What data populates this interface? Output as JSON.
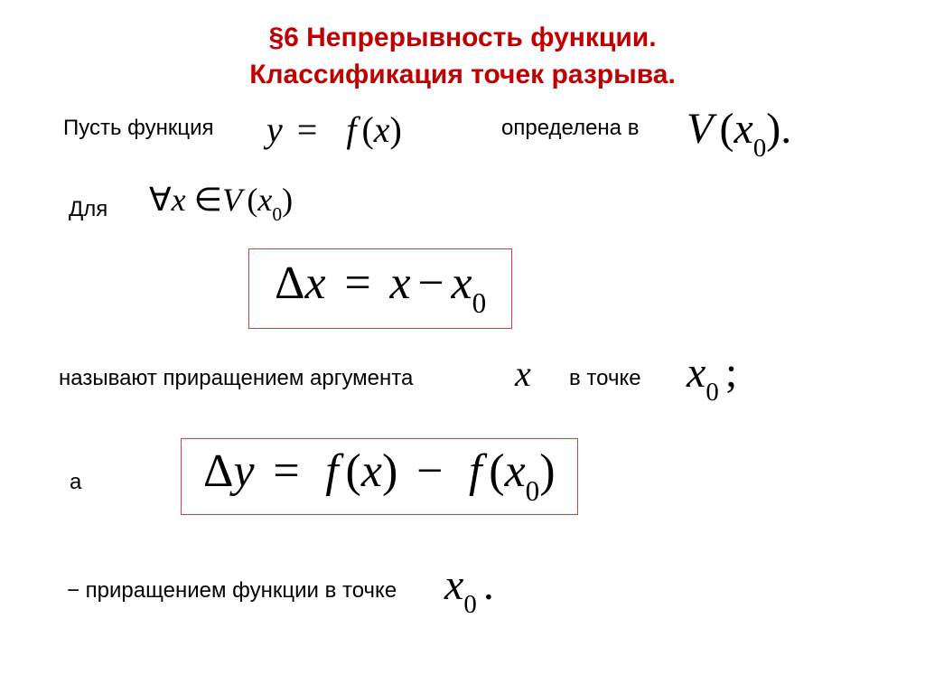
{
  "heading_line1": "§6 Непрерывность функции.",
  "heading_line2": "Классификация точек разрыва.",
  "line1_a": "Пусть функция",
  "line1_b": "определена в",
  "line2_a": "Для",
  "line3_a": "называют приращением аргумента",
  "line3_b": "в точке",
  "line4_a": "а",
  "line5_a": "− приращением функции в точке",
  "formulas": {
    "y_eq_fx": {
      "lhs_var": "y",
      "eq": "=",
      "f": "f",
      "arg": "x"
    },
    "Vx0": {
      "V": "V",
      "arg": "x",
      "sub": "0",
      "tail": "."
    },
    "forall": {
      "sym": "∀",
      "x": "x",
      "in": "∈",
      "V": "V",
      "arg": "x",
      "sub": "0"
    },
    "dx": {
      "D": "Δ",
      "x": "x",
      "eq": "=",
      "rhs1": "x",
      "minus": "−",
      "rhs2": "x",
      "sub": "0"
    },
    "x": "x",
    "x0semi": {
      "x": "x",
      "sub": "0",
      "tail": ";"
    },
    "dy": {
      "D": "Δ",
      "y": "y",
      "eq": "=",
      "f": "f",
      "a1": "x",
      "minus": "−",
      "a2": "x",
      "sub": "0"
    },
    "x0dot": {
      "x": "x",
      "sub": "0",
      "tail": "."
    }
  },
  "colors": {
    "heading": "#c00000",
    "box_border": "#d04040",
    "text": "#000000",
    "bg": "#ffffff"
  },
  "typography": {
    "body_pt": 24,
    "heading_pt": 30,
    "math_lg_pt": 40,
    "math_xl_pt": 48,
    "box_pt": 52,
    "math_family": "Times New Roman"
  }
}
